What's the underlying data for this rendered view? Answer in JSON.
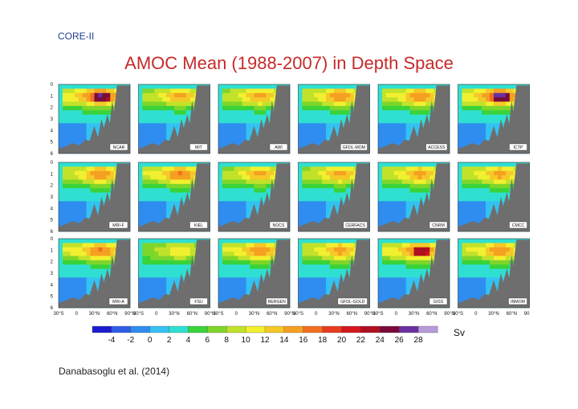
{
  "header": {
    "tag": "CORE-II",
    "title": "AMOC Mean (1988-2007) in Depth Space"
  },
  "citation": "Danabasoglu et al. (2014)",
  "figure": {
    "panels": [
      {
        "label": "NCAR",
        "peak": 1.0,
        "hot": 0.75
      },
      {
        "label": "MIT",
        "peak": 0.72,
        "hot": 0.25
      },
      {
        "label": "AWI",
        "peak": 0.74,
        "hot": 0.3
      },
      {
        "label": "GFDL-MOM",
        "peak": 0.78,
        "hot": 0.4
      },
      {
        "label": "ACCESS",
        "peak": 0.8,
        "hot": 0.45
      },
      {
        "label": "ICTP",
        "peak": 1.0,
        "hot": 0.8
      },
      {
        "label": "MRI-F",
        "peak": 0.78,
        "hot": 0.35
      },
      {
        "label": "KIEL",
        "peak": 0.84,
        "hot": 0.5
      },
      {
        "label": "NOCS",
        "peak": 0.72,
        "hot": 0.3
      },
      {
        "label": "CERFACS",
        "peak": 0.74,
        "hot": 0.35
      },
      {
        "label": "CNRM",
        "peak": 0.76,
        "hot": 0.4
      },
      {
        "label": "CMCC",
        "peak": 0.76,
        "hot": 0.35
      },
      {
        "label": "MRI-A",
        "peak": 0.84,
        "hot": 0.5
      },
      {
        "label": "FSU",
        "peak": 0.55,
        "hot": 0.15
      },
      {
        "label": "BERGEN",
        "peak": 0.82,
        "hot": 0.45
      },
      {
        "label": "GFDL-GOLD",
        "peak": 0.76,
        "hot": 0.4
      },
      {
        "label": "GISS",
        "peak": 0.92,
        "hot": 0.65
      },
      {
        "label": "INMOM",
        "peak": 0.8,
        "hot": 0.4
      }
    ],
    "y_ticks": [
      "0",
      "1",
      "2",
      "3",
      "4",
      "5",
      "6"
    ],
    "x_ticks": [
      "30°S",
      "0",
      "30°N",
      "60°N",
      "90°N"
    ],
    "colorbar": {
      "colors": [
        "#1c1ccf",
        "#2f5de8",
        "#2f8df0",
        "#33c2f2",
        "#2fe0d2",
        "#39d33a",
        "#7ed62a",
        "#c2e22a",
        "#f2f02e",
        "#f5c828",
        "#f5a020",
        "#f36d1f",
        "#e83c1f",
        "#d4161e",
        "#b00f20",
        "#7a0a3a",
        "#6a2fa0",
        "#b79ad8"
      ],
      "ticks": [
        "-4",
        "-2",
        "0",
        "2",
        "4",
        "6",
        "8",
        "10",
        "12",
        "14",
        "16",
        "18",
        "20",
        "22",
        "24",
        "26",
        "28"
      ],
      "unit": "Sv"
    },
    "colors": {
      "land": "#6e6e6e"
    }
  }
}
